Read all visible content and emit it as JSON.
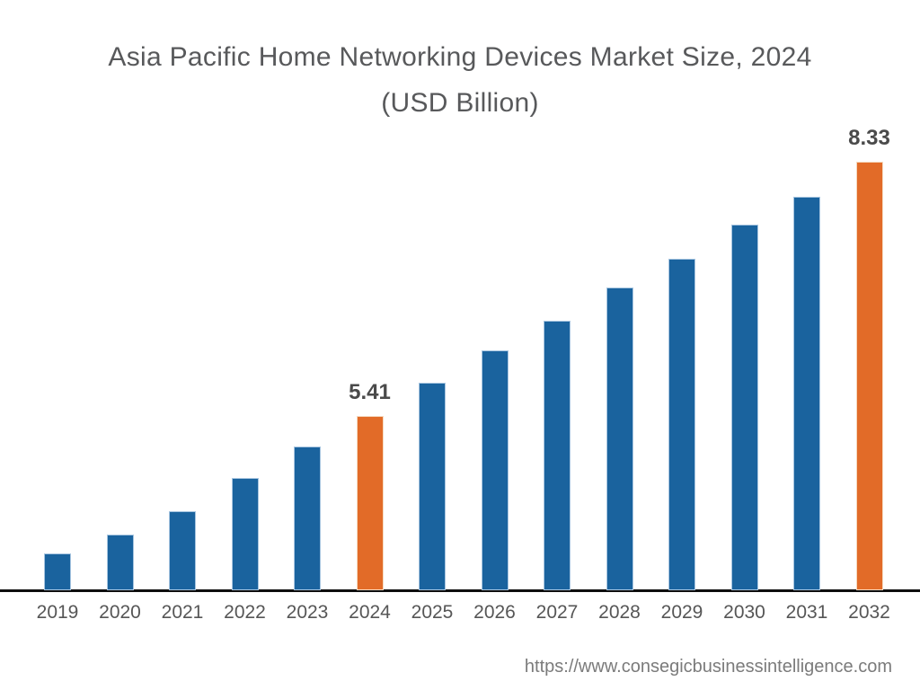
{
  "title": {
    "line1": "Asia Pacific Home Networking Devices Market Size, 2024",
    "line2": "(USD Billion)"
  },
  "footer": {
    "url": "https://www.consegicbusinessintelligence.com"
  },
  "colors": {
    "bar_default": "#1a639e",
    "bar_default_edge": "#a7c5e0",
    "bar_highlight": "#e26b28",
    "bar_highlight_edge": "#f5d9bf",
    "axis_line": "#0e0e0e",
    "title_text": "#58595b",
    "data_label_text": "#4a4a4a",
    "tick_text": "#565656",
    "footer_text": "#7b7b7b"
  },
  "chart_data": {
    "type": "bar",
    "title": "Asia Pacific Home Networking Devices Market Size, 2024 (USD Billion)",
    "categories": [
      "2019",
      "2020",
      "2021",
      "2022",
      "2023",
      "2024",
      "2025",
      "2026",
      "2027",
      "2028",
      "2029",
      "2030",
      "2031",
      "2032"
    ],
    "values": [
      3.83,
      4.05,
      4.32,
      4.7,
      5.06,
      5.41,
      5.79,
      6.17,
      6.51,
      6.89,
      7.22,
      7.61,
      7.93,
      8.33
    ],
    "values_estimated_from_bar_heights": true,
    "data_labels": {
      "2024": "5.41",
      "2032": "8.33"
    },
    "highlighted_categories": [
      "2024",
      "2032"
    ],
    "xlabel": "",
    "ylabel": "",
    "grid": false,
    "legend": false,
    "ylim_estimate": [
      3.41,
      8.6
    ]
  }
}
